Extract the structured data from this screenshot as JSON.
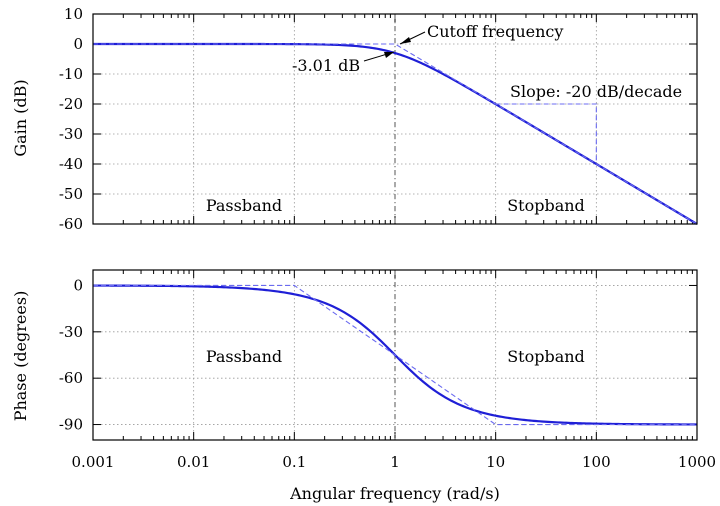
{
  "chart_data": [
    {
      "type": "line",
      "ylabel": "Gain (dB)",
      "xscale": "log",
      "xlim": [
        0.001,
        1000
      ],
      "ylim": [
        -60,
        10
      ],
      "yticks": [
        10,
        0,
        -10,
        -20,
        -30,
        -40,
        -50,
        -60
      ],
      "ytick_labels": [
        "10",
        "0",
        "-10",
        "-20",
        "-30",
        "-40",
        "-50",
        "-60"
      ],
      "grid": true,
      "series": [
        {
          "role": "response",
          "x": [
            0.001,
            0.01,
            0.1,
            0.2,
            0.5,
            1,
            2,
            5,
            10,
            100,
            1000
          ],
          "values": [
            0,
            0,
            -0.04,
            -0.17,
            -0.97,
            -3.01,
            -6.99,
            -14.15,
            -20.04,
            -40,
            -60
          ]
        },
        {
          "role": "asymptote",
          "x": [
            0.001,
            1,
            1000
          ],
          "values": [
            0,
            0,
            -60
          ]
        }
      ],
      "annotations": {
        "cutoff": "Cutoff frequency",
        "minus3db": "-3.01 dB",
        "slope": "Slope: -20 dB/decade",
        "passband": "Passband",
        "stopband": "Stopband"
      },
      "slope_triangle": {
        "x": [
          10,
          100
        ],
        "y": [
          -20,
          -40
        ]
      }
    },
    {
      "type": "line",
      "xlabel": "Angular frequency (rad/s)",
      "ylabel": "Phase (degrees)",
      "xscale": "log",
      "xlim": [
        0.001,
        1000
      ],
      "ylim": [
        -100,
        10
      ],
      "xticks": [
        0.001,
        0.01,
        0.1,
        1,
        10,
        100,
        1000
      ],
      "xtick_labels": [
        "0.001",
        "0.01",
        "0.1",
        "1",
        "10",
        "100",
        "1000"
      ],
      "yticks": [
        0,
        -30,
        -60,
        -90
      ],
      "ytick_labels": [
        "0",
        "-30",
        "-60",
        "-90"
      ],
      "grid": true,
      "series": [
        {
          "role": "response",
          "x": [
            0.001,
            0.01,
            0.1,
            0.3,
            1,
            3,
            10,
            100,
            1000
          ],
          "values": [
            -0.06,
            -0.57,
            -5.71,
            -16.7,
            -45,
            -71.6,
            -84.3,
            -89.4,
            -89.9
          ]
        },
        {
          "role": "asymptote",
          "x": [
            0.001,
            0.1,
            10,
            1000
          ],
          "values": [
            0,
            0,
            -90,
            -90
          ]
        }
      ],
      "annotations": {
        "passband": "Passband",
        "stopband": "Stopband"
      }
    }
  ]
}
